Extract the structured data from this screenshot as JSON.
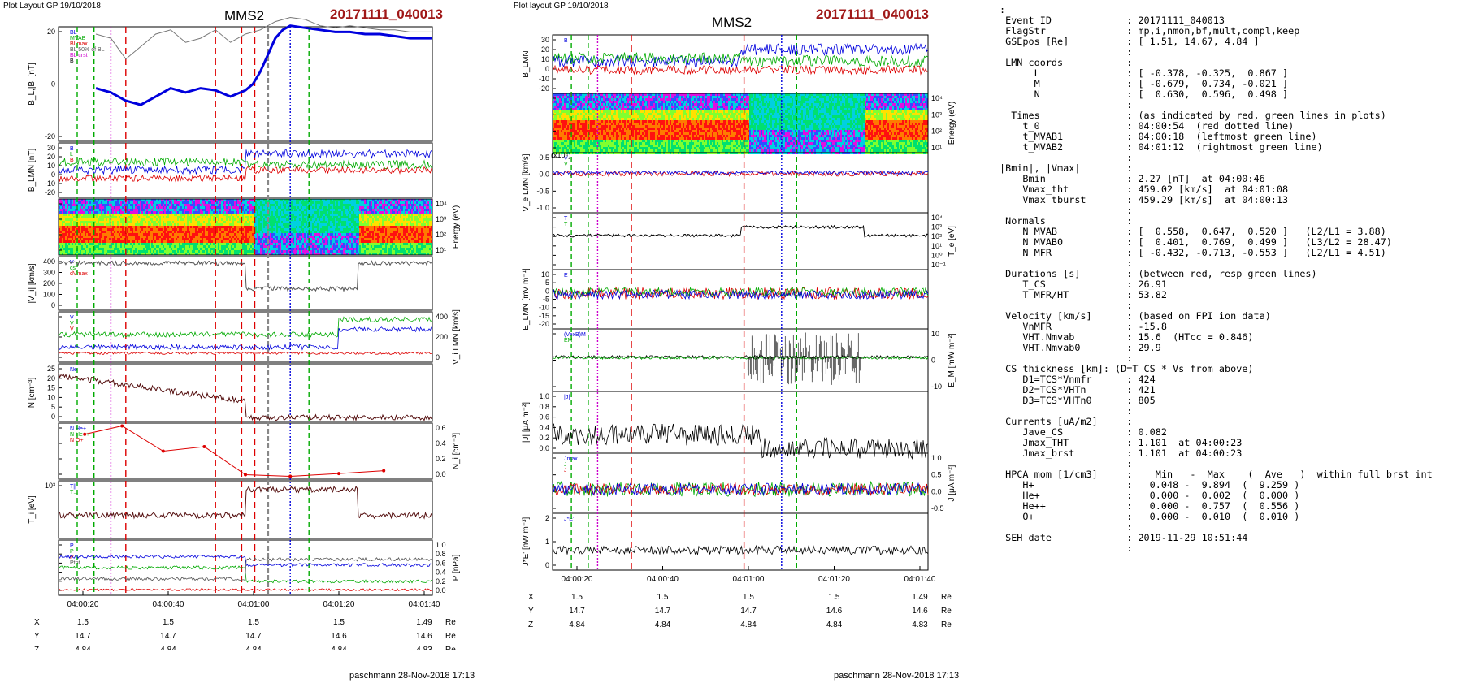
{
  "left_plot": {
    "layout_label": "Plot Layout GP 19/10/2018",
    "title": "MMS2",
    "event": "20171111_040013",
    "footer": "paschmann 28-Nov-2018 17:13",
    "time_ticks": [
      "04:00:20",
      "04:00:40",
      "04:01:00",
      "04:01:20",
      "04:01:40"
    ],
    "coord_rows": [
      {
        "axis": "X",
        "values": [
          "1.5",
          "1.5",
          "1.5",
          "1.5",
          "1.49"
        ],
        "unit": "Re"
      },
      {
        "axis": "Y",
        "values": [
          "14.7",
          "14.7",
          "14.7",
          "14.6",
          "14.6"
        ],
        "unit": "Re"
      },
      {
        "axis": "Z",
        "values": [
          "4.84",
          "4.84",
          "4.84",
          "4.84",
          "4.83"
        ],
        "unit": "Re"
      }
    ],
    "panels": [
      {
        "ylabel": "B_L,|B| [nT]",
        "side": "left",
        "ticks": [
          "20",
          "0",
          "-20"
        ],
        "legend": [
          "BL",
          "MVAB",
          "BLmax",
          "BL 50% of BL",
          "BL crst",
          "B"
        ]
      },
      {
        "ylabel": "B_LMN [nT]",
        "side": "left",
        "ticks": [
          "30",
          "20",
          "10",
          "0",
          "-10",
          "-20"
        ],
        "legend": [
          "B",
          "L",
          "B"
        ]
      },
      {
        "ylabel": "Energy (eV)",
        "side": "right",
        "ticks": [
          "10⁴",
          "10³",
          "10²",
          "10¹"
        ],
        "legend": []
      },
      {
        "ylabel": "|V_i| [km/s]",
        "side": "left",
        "ticks": [
          "400",
          "300",
          "200",
          "100",
          "0"
        ],
        "legend": [
          "V",
          "cs",
          "dVmax"
        ]
      },
      {
        "ylabel": "V_i LMN [km/s]",
        "side": "right",
        "ticks": [
          "400",
          "200",
          "0"
        ],
        "legend": [
          "V",
          "V",
          "V"
        ]
      },
      {
        "ylabel": "N [cm⁻³]",
        "side": "left",
        "ticks": [
          "25",
          "20",
          "15",
          "10",
          "5",
          "0"
        ],
        "legend": [
          "Ne"
        ]
      },
      {
        "ylabel": "N_i [cm⁻³]",
        "side": "right",
        "ticks": [
          "0.6",
          "0.4",
          "0.2",
          "0.0"
        ],
        "legend": [
          "N He+",
          "N He++",
          "N O+"
        ]
      },
      {
        "ylabel": "T_i [eV]",
        "side": "left",
        "ticks": [
          "10³"
        ],
        "legend": [
          "T||",
          "T⊥"
        ]
      },
      {
        "ylabel": "P [nPa]",
        "side": "right",
        "ticks": [
          "1.0",
          "0.8",
          "0.6",
          "0.4",
          "0.2",
          "0.0"
        ],
        "legend": [
          "P",
          "P",
          "P",
          "Ptot"
        ]
      }
    ]
  },
  "middle_plot": {
    "layout_label": "Plot layout GP 19/10/2018",
    "title": "MMS2",
    "event": "20171111_040013",
    "footer": "paschmann 28-Nov-2018 17:13",
    "time_ticks": [
      "04:00:20",
      "04:00:40",
      "04:01:00",
      "04:01:20",
      "04:01:40"
    ],
    "coord_rows": [
      {
        "axis": "X",
        "values": [
          "1.5",
          "1.5",
          "1.5",
          "1.5",
          "1.49"
        ],
        "unit": "Re"
      },
      {
        "axis": "Y",
        "values": [
          "14.7",
          "14.7",
          "14.7",
          "14.6",
          "14.6"
        ],
        "unit": "Re"
      },
      {
        "axis": "Z",
        "values": [
          "4.84",
          "4.84",
          "4.84",
          "4.84",
          "4.83"
        ],
        "unit": "Re"
      }
    ],
    "panels": [
      {
        "ylabel": "B_LMN",
        "side": "left",
        "ticks": [
          "30",
          "20",
          "10",
          "0",
          "-10",
          "-20"
        ],
        "legend": [
          "B"
        ]
      },
      {
        "ylabel": "Energy (eV)",
        "side": "right",
        "ticks": [
          "10⁴",
          "10³",
          "10²",
          "10¹"
        ],
        "legend": []
      },
      {
        "ylabel": "V_e LMN [km/s]",
        "side": "left",
        "ticks": [
          "0.5",
          "0.0",
          "-0.5",
          "-1.0"
        ],
        "legend": [
          "V",
          "V"
        ],
        "scale_label": "(x10⁴)"
      },
      {
        "ylabel": "T_e [eV]",
        "side": "right",
        "ticks": [
          "10⁴",
          "10³",
          "10²",
          "10¹",
          "10⁰",
          "10⁻¹"
        ],
        "legend": [
          "T",
          "T"
        ]
      },
      {
        "ylabel": "E_LMN [mV m⁻¹]",
        "side": "left",
        "ticks": [
          "10",
          "5",
          "0",
          "-5",
          "-10",
          "-15",
          "-20"
        ],
        "legend": [
          "E"
        ]
      },
      {
        "ylabel": "E_M [mW m⁻²]",
        "side": "right",
        "ticks": [
          "10",
          "0",
          "-10"
        ],
        "legend": [
          "(VexB)M",
          "EM"
        ]
      },
      {
        "ylabel": "|J| [μA m⁻²]",
        "side": "left",
        "ticks": [
          "1.0",
          "0.8",
          "0.6",
          "0.4",
          "0.2",
          "0.0"
        ],
        "legend": [
          "|J|"
        ]
      },
      {
        "ylabel": "J [μA m⁻²]",
        "side": "right",
        "ticks": [
          "1.0",
          "0.5",
          "0.0",
          "-0.5"
        ],
        "legend": [
          "Jmax",
          "J",
          "J"
        ]
      },
      {
        "ylabel": "J*E' [nW m⁻³]",
        "side": "left",
        "ticks": [
          "2",
          "1",
          "0"
        ],
        "legend": [
          "J*E'"
        ]
      }
    ]
  },
  "info_lines": [
    ":",
    " Event ID             : 20171111_040013",
    " FlagStr              : mp,i,nmon,bf,mult,compl,keep",
    " GSEpos [Re]          : [ 1.51, 14.67, 4.84 ]",
    "                      :",
    " LMN coords           :",
    "      L               : [ -0.378, -0.325,  0.867 ]",
    "      M               : [ -0.679,  0.734, -0.021 ]",
    "      N               : [  0.630,  0.596,  0.498 ]",
    "                      :",
    "  Times               : (as indicated by red, green lines in plots)",
    "    t_0               : 04:00:54  (red dotted line)",
    "    t_MVAB1           : 04:00:18  (leftmost green line)",
    "    t_MVAB2           : 04:01:12  (rightmost green line)",
    "                      :",
    "|Bmin|, |Vmax|        :",
    "    Bmin              : 2.27 [nT]  at 04:00:46",
    "    Vmax_tht          : 459.02 [km/s]  at 04:01:08",
    "    Vmax_tburst       : 459.29 [km/s]  at 04:00:13",
    "                      :",
    " Normals              :",
    "    N MVAB            : [  0.558,  0.647,  0.520 ]   (L2/L1 = 3.88)",
    "    N MVAB0           : [  0.401,  0.769,  0.499 ]   (L3/L2 = 28.47)",
    "    N MFR             : [ -0.432, -0.713, -0.553 ]   (L2/L1 = 4.51)",
    "                      :",
    " Durations [s]        : (between red, resp green lines)",
    "    T_CS              : 26.91",
    "    T_MFR/HT          : 53.82",
    "                      :",
    " Velocity [km/s]      : (based on FPI ion data)",
    "    VnMFR             : -15.8",
    "    VHT.Nmvab         : 15.6  (HTcc = 0.846)",
    "    VHT.Nmvab0        : 29.9",
    "                      :",
    " CS thickness [km]: (D=T_CS * Vs from above)",
    "    D1=TCS*Vnmfr      : 424",
    "    D2=TCS*VHTn       : 421",
    "    D3=TCS*VHTn0      : 805",
    "                      :",
    " Currents [uA/m2]     :",
    "    Jave_CS           : 0.082",
    "    Jmax_THT          : 1.101  at 04:00:23",
    "    Jmax_brst         : 1.101  at 04:00:23",
    "                      :",
    " HPCA mom [1/cm3]     :    Min   -  Max    (  Ave   )  within full brst int",
    "    H+                :   0.048 -  9.894  (  9.259 )",
    "    He+               :   0.000 -  0.002  (  0.000 )",
    "    He++              :   0.000 -  0.757  (  0.556 )",
    "    O+                :   0.000 -  0.010  (  0.010 )",
    "                      :",
    " SEH date             : 2019-11-29 10:51:44",
    "                      :"
  ],
  "chart_data": [
    {
      "type": "line",
      "title": "MMS2",
      "subtitle": "20171111_040013",
      "x_ticks": [
        "04:00:20",
        "04:00:40",
        "04:01:00",
        "04:01:20",
        "04:01:40"
      ],
      "series": [
        {
          "name": "BL",
          "x": [
            10,
            14,
            18,
            22,
            26,
            30,
            34,
            38,
            42,
            46,
            50,
            52,
            54,
            56,
            58,
            60,
            62,
            66,
            70,
            74,
            78,
            82,
            86,
            90,
            94,
            100
          ],
          "y": [
            -2,
            -4,
            -8,
            -10,
            -6,
            -2,
            -4,
            -2,
            -3,
            -6,
            -3,
            0,
            6,
            14,
            22,
            26,
            28,
            27,
            26,
            25,
            25,
            24,
            24,
            23,
            22,
            22
          ],
          "color": "#0000dd"
        },
        {
          "name": "|B|",
          "x": [
            10,
            14,
            18,
            22,
            26,
            30,
            34,
            38,
            42,
            46,
            50,
            54,
            58,
            62,
            66,
            70,
            74,
            78,
            82,
            86,
            90,
            94,
            100
          ],
          "y": [
            24,
            22,
            12,
            18,
            24,
            26,
            20,
            22,
            26,
            20,
            24,
            26,
            30,
            32,
            31,
            28,
            27,
            28,
            27,
            26,
            26,
            25,
            25
          ],
          "color": "#777777"
        }
      ]
    }
  ]
}
